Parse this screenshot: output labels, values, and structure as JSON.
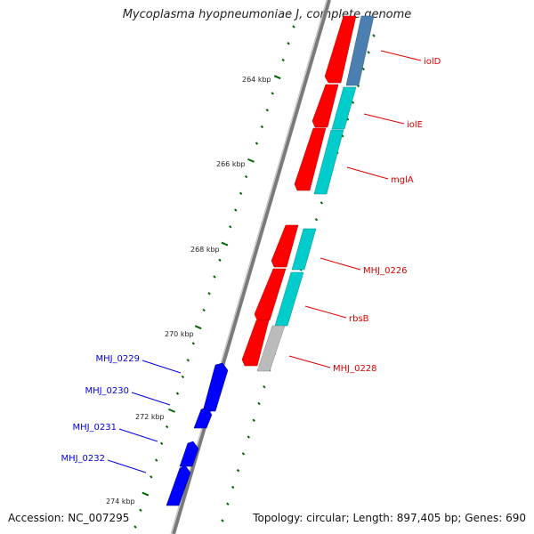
{
  "title": "Mycoplasma hyopneumoniae J, complete genome",
  "footer": {
    "accession_label": "Accession:",
    "accession_value": "NC_007295",
    "topology_label": "Topology:",
    "topology_value": "circular",
    "length_label": "Length:",
    "length_value": "897,405 bp",
    "genes_label": "Genes:",
    "genes_value": "690"
  },
  "colors": {
    "forward_strand": "#ff0000",
    "reverse_strand": "#0000ff",
    "cog_cyan": "#00cccc",
    "cog_steelblue": "#4a7fb0",
    "cog_gray": "#bbbbbb",
    "backbone": "#888888",
    "tick": "#006400"
  },
  "scale": {
    "unit": "kbp",
    "labels": [
      "264 kbp",
      "266 kbp",
      "268 kbp",
      "270 kbp",
      "272 kbp",
      "274 kbp"
    ]
  },
  "genes_right": [
    {
      "name": "iolD",
      "cog_color": "steelblue"
    },
    {
      "name": "iolE",
      "cog_color": "cyan"
    },
    {
      "name": "mglA",
      "cog_color": "cyan"
    },
    {
      "name": "MHJ_0226",
      "cog_color": "cyan"
    },
    {
      "name": "rbsB",
      "cog_color": "cyan"
    },
    {
      "name": "MHJ_0228",
      "cog_color": "gray"
    }
  ],
  "genes_left": [
    {
      "name": "MHJ_0229"
    },
    {
      "name": "MHJ_0230"
    },
    {
      "name": "MHJ_0231"
    },
    {
      "name": "MHJ_0232"
    }
  ]
}
